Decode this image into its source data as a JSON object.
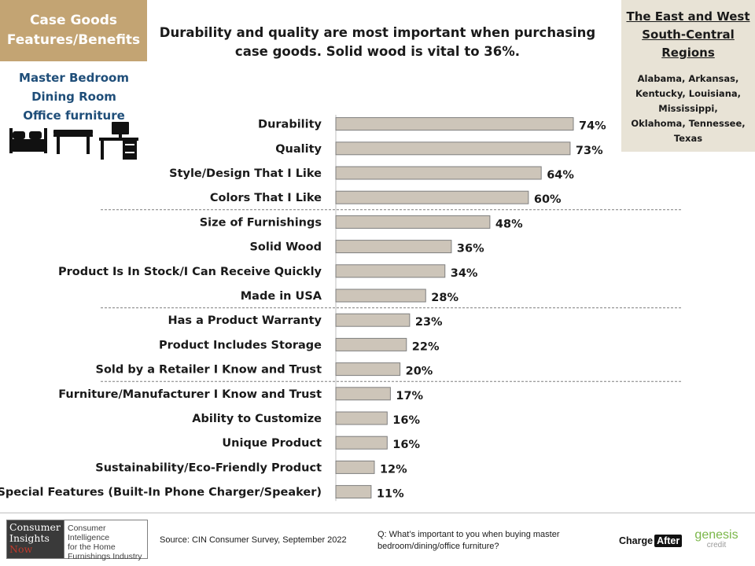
{
  "section": {
    "line1": "Case Goods",
    "line2": "Features/Benefits"
  },
  "headline": {
    "line1": "Durability and quality are most important when purchasing",
    "line2": "case goods. Solid wood is vital to 36%."
  },
  "region": {
    "title_lines": [
      "The East and West",
      "South-Central",
      "Regions"
    ],
    "states_lines": [
      "Alabama, Arkansas,",
      "Kentucky, Louisiana,",
      "Mississippi,",
      "Oklahoma, Tennessee,",
      "Texas"
    ]
  },
  "rooms": [
    "Master Bedroom",
    "Dining Room",
    "Office furniture"
  ],
  "icons": [
    "bed-icon",
    "dining-table-icon",
    "office-desk-icon"
  ],
  "chart_data": {
    "type": "bar",
    "orientation": "horizontal",
    "categories": [
      "Durability",
      "Quality",
      "Style/Design That I Like",
      "Colors That I Like",
      "Size of Furnishings",
      "Solid Wood",
      "Product Is In Stock/I Can Receive Quickly",
      "Made in USA",
      "Has a Product Warranty",
      "Product Includes Storage",
      "Sold by a Retailer I Know and Trust",
      "Furniture/Manufacturer I Know and Trust",
      "Ability to Customize",
      "Unique Product",
      "Sustainability/Eco-Friendly Product",
      "Special Features (Built-In Phone Charger/Speaker)"
    ],
    "values": [
      74,
      73,
      64,
      60,
      48,
      36,
      34,
      28,
      23,
      22,
      20,
      17,
      16,
      16,
      12,
      11
    ],
    "value_labels": [
      "74%",
      "73%",
      "64%",
      "60%",
      "48%",
      "36%",
      "34%",
      "28%",
      "23%",
      "22%",
      "20%",
      "17%",
      "16%",
      "16%",
      "12%",
      "11%"
    ],
    "group_dividers_after": [
      3,
      7,
      10
    ],
    "bar_color": "#cdc5b9",
    "bar_border": "#7f7f7f",
    "xlim": [
      0,
      100
    ]
  },
  "footer": {
    "logo_left": [
      "Consumer",
      "Insights",
      "Now"
    ],
    "logo_right": [
      "Consumer Intelligence",
      "for the Home",
      "Furnishings Industry"
    ],
    "source": "Source: CIN Consumer Survey, September 2022",
    "question_lines": [
      "Q: What’s important to you when buying master",
      "bedroom/dining/office furniture?"
    ],
    "chargeafter": {
      "part1": "Charge",
      "part2": "After"
    },
    "genesis": {
      "part1": "genesis",
      "part2": "credit"
    }
  },
  "colors": {
    "section_bg": "#c3a473",
    "region_bg": "#e8e3d6",
    "rooms_text": "#1f4e79",
    "genesis_green": "#7ab648"
  }
}
